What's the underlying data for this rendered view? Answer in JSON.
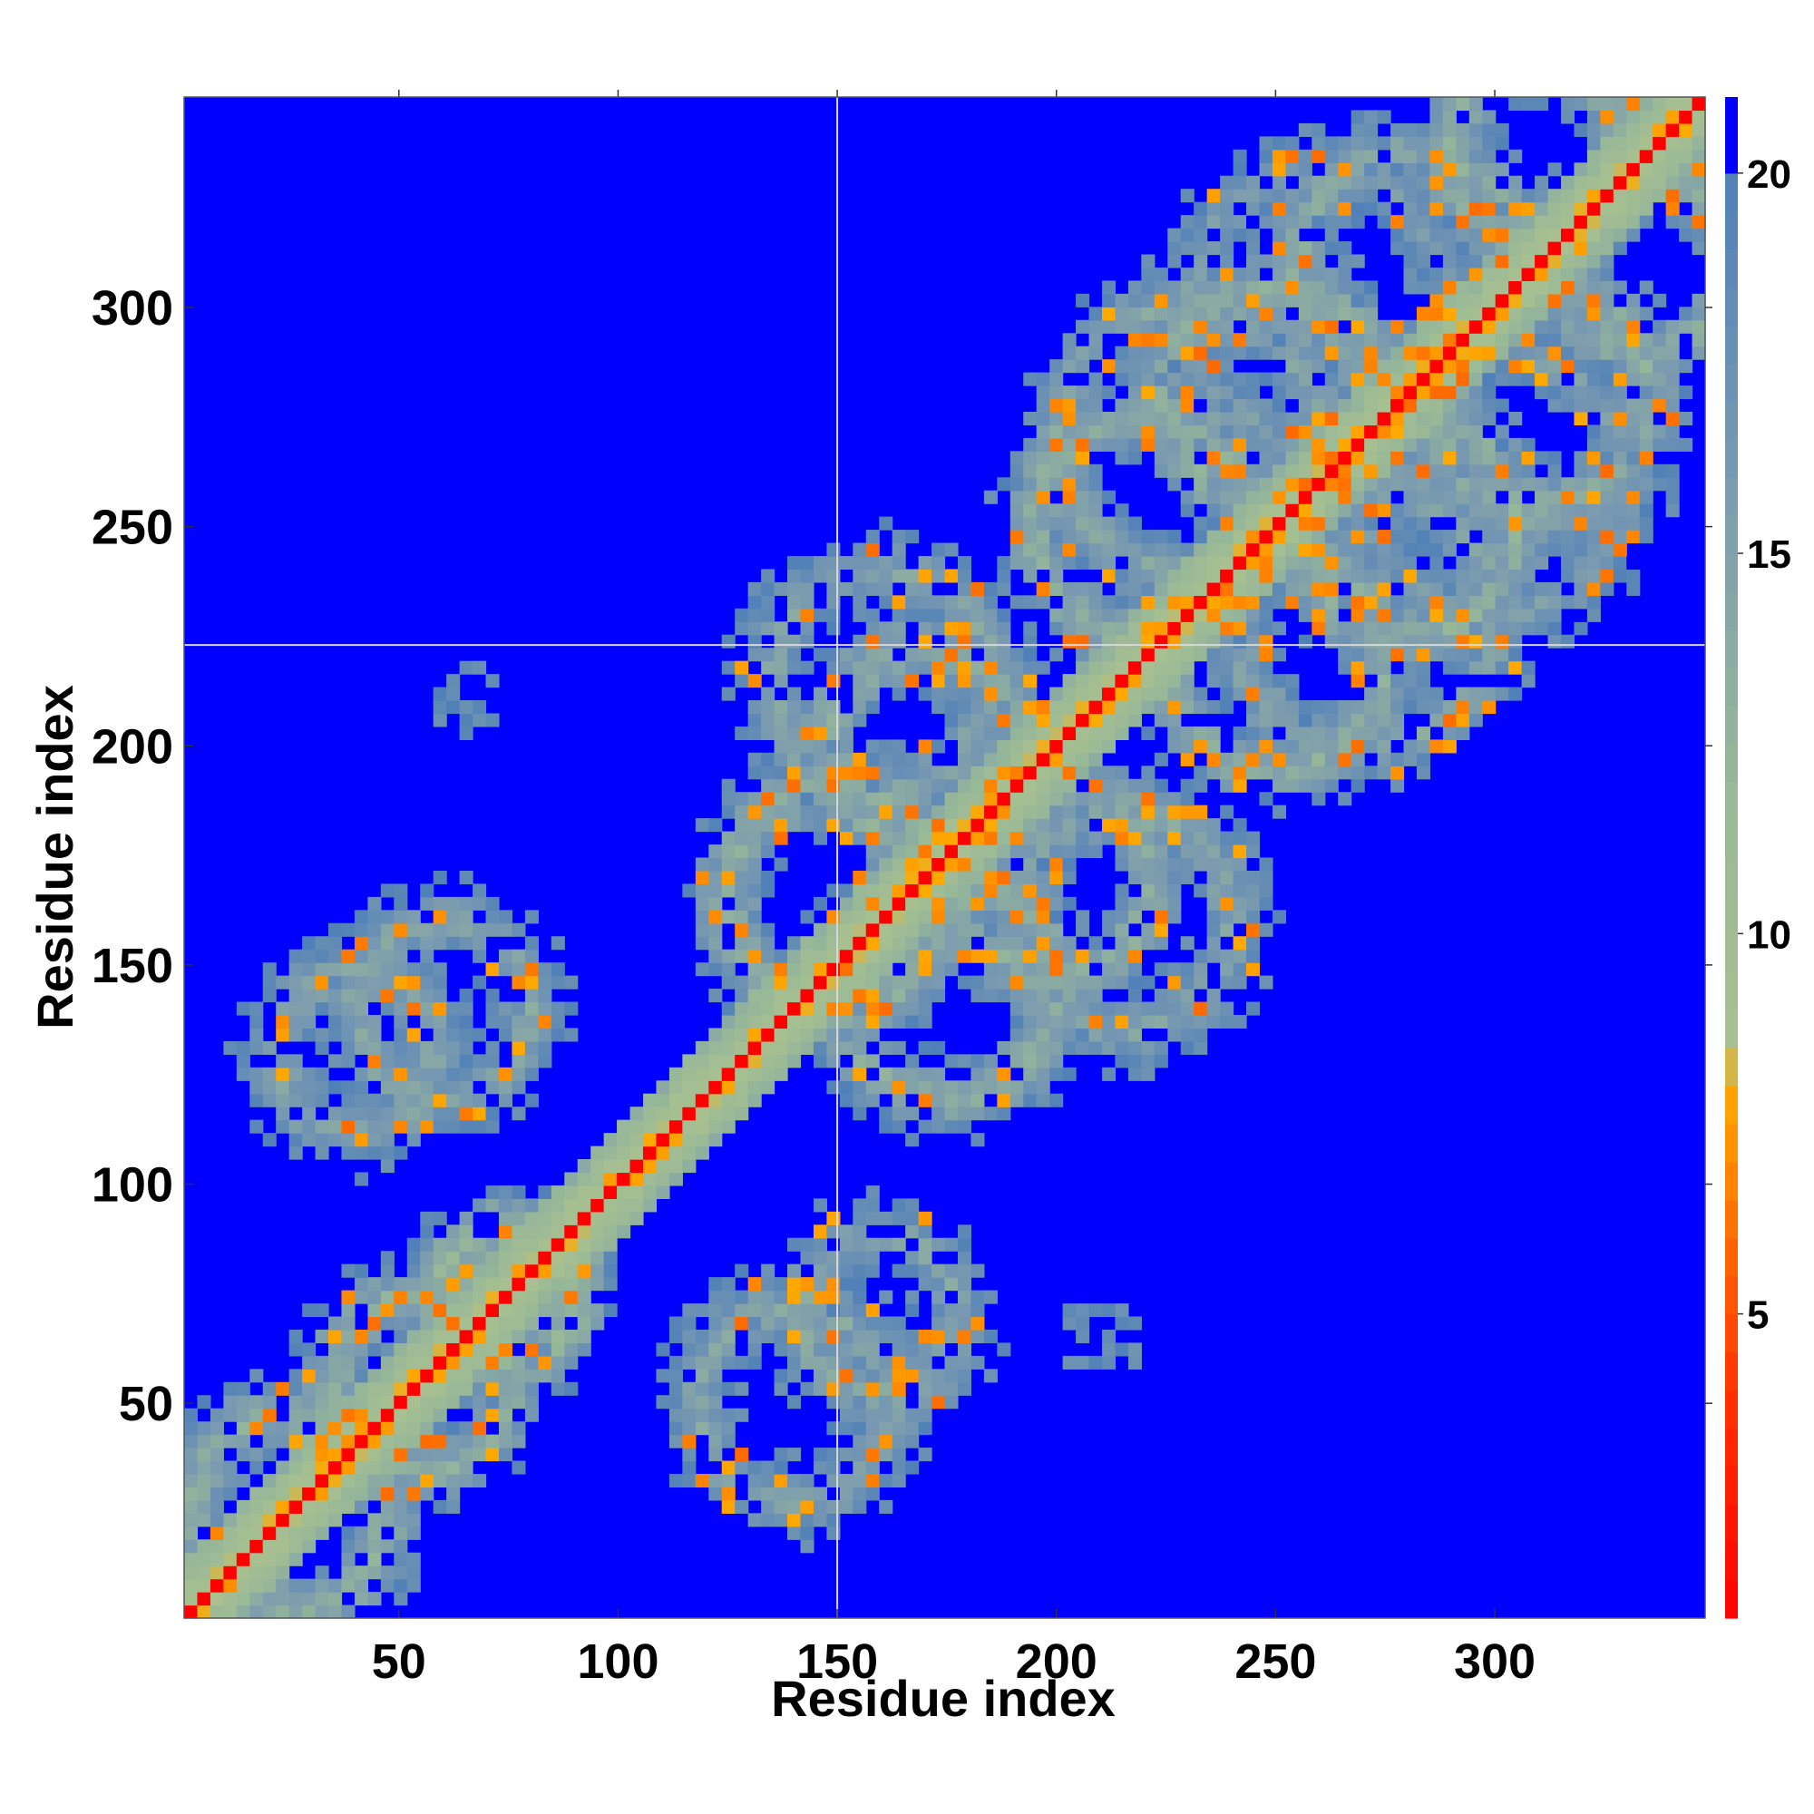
{
  "chart_data": {
    "type": "heatmap",
    "title": "",
    "xlabel": "Residue index",
    "ylabel": "Residue index",
    "xlim": [
      1,
      348
    ],
    "ylim": [
      1,
      348
    ],
    "x_ticks": [
      50,
      100,
      150,
      200,
      250,
      300
    ],
    "y_ticks": [
      50,
      100,
      150,
      200,
      250,
      300
    ],
    "x_tick_labels": [
      "50",
      "100",
      "150",
      "200",
      "250",
      "300"
    ],
    "y_tick_labels": [
      "50",
      "100",
      "150",
      "200",
      "250",
      "300"
    ],
    "grid": false,
    "reference_lines": {
      "x": 150,
      "y": 223
    },
    "colorbar": {
      "range": [
        1,
        21
      ],
      "ticks": [
        5,
        10,
        15,
        20
      ],
      "tick_labels": [
        "5",
        "10",
        "15",
        "20"
      ],
      "stops": [
        {
          "value": 1,
          "color": "#ff0000"
        },
        {
          "value": 4,
          "color": "#ff3300"
        },
        {
          "value": 6,
          "color": "#ff6a00"
        },
        {
          "value": 8,
          "color": "#ffaa00"
        },
        {
          "value": 8.5,
          "color": "#a8c090"
        },
        {
          "value": 12,
          "color": "#98b898"
        },
        {
          "value": 16,
          "color": "#7a9ab0"
        },
        {
          "value": 20,
          "color": "#5080b8"
        },
        {
          "value": 20.01,
          "color": "#0000ff"
        },
        {
          "value": 21,
          "color": "#0000ff"
        }
      ],
      "background_color": "#0000ff"
    },
    "value_scale": "distance (contact map)",
    "diagonal_value": 1,
    "background_value": 21,
    "contact_features": [
      {
        "kind": "band",
        "from": [
          1,
          1
        ],
        "to": [
          348,
          348
        ],
        "half_width": 10,
        "value": 13
      },
      {
        "kind": "ring",
        "center": [
          25,
          25
        ],
        "radius": 22,
        "value": 13
      },
      {
        "kind": "ring",
        "center": [
          55,
          55
        ],
        "radius": 20,
        "value": 13
      },
      {
        "kind": "ring",
        "center": [
          75,
          75
        ],
        "radius": 15,
        "value": 12
      },
      {
        "kind": "ring",
        "center": [
          60,
          140
        ],
        "radius": 20,
        "value": 14
      },
      {
        "kind": "ring",
        "center": [
          40,
          130
        ],
        "radius": 18,
        "value": 14
      },
      {
        "kind": "ring",
        "center": [
          140,
          50
        ],
        "radius": 22,
        "value": 14
      },
      {
        "kind": "ring",
        "center": [
          160,
          70
        ],
        "radius": 18,
        "value": 14
      },
      {
        "kind": "ring",
        "center": [
          150,
          165
        ],
        "radius": 25,
        "value": 13
      },
      {
        "kind": "ring",
        "center": [
          175,
          145
        ],
        "radius": 25,
        "value": 13
      },
      {
        "kind": "ring",
        "center": [
          170,
          200
        ],
        "radius": 22,
        "value": 13
      },
      {
        "kind": "ring",
        "center": [
          200,
          170
        ],
        "radius": 22,
        "value": 13
      },
      {
        "kind": "ring",
        "center": [
          215,
          160
        ],
        "radius": 25,
        "value": 14
      },
      {
        "kind": "ring",
        "center": [
          160,
          215
        ],
        "radius": 25,
        "value": 14
      },
      {
        "kind": "ring",
        "center": [
          220,
          250
        ],
        "radius": 25,
        "value": 13
      },
      {
        "kind": "ring",
        "center": [
          250,
          220
        ],
        "radius": 25,
        "value": 13
      },
      {
        "kind": "ring",
        "center": [
          250,
          280
        ],
        "radius": 25,
        "value": 13
      },
      {
        "kind": "ring",
        "center": [
          280,
          250
        ],
        "radius": 25,
        "value": 13
      },
      {
        "kind": "ring",
        "center": [
          280,
          310
        ],
        "radius": 25,
        "value": 13
      },
      {
        "kind": "ring",
        "center": [
          310,
          280
        ],
        "radius": 25,
        "value": 13
      },
      {
        "kind": "ring",
        "center": [
          310,
          335
        ],
        "radius": 20,
        "value": 13
      },
      {
        "kind": "ring",
        "center": [
          335,
          310
        ],
        "radius": 20,
        "value": 13
      },
      {
        "kind": "ring",
        "center": [
          270,
          230
        ],
        "radius": 30,
        "value": 14
      },
      {
        "kind": "ring",
        "center": [
          230,
          270
        ],
        "radius": 30,
        "value": 14
      },
      {
        "kind": "ring",
        "center": [
          300,
          260
        ],
        "radius": 30,
        "value": 15
      },
      {
        "kind": "ring",
        "center": [
          260,
          300
        ],
        "radius": 30,
        "value": 15
      },
      {
        "kind": "patch",
        "center": [
          210,
          65
        ],
        "radius": 10,
        "value": 17
      },
      {
        "kind": "patch",
        "center": [
          65,
          210
        ],
        "radius": 10,
        "value": 17
      },
      {
        "kind": "patch",
        "center": [
          100,
          100
        ],
        "radius": 6,
        "value": 12
      }
    ]
  }
}
